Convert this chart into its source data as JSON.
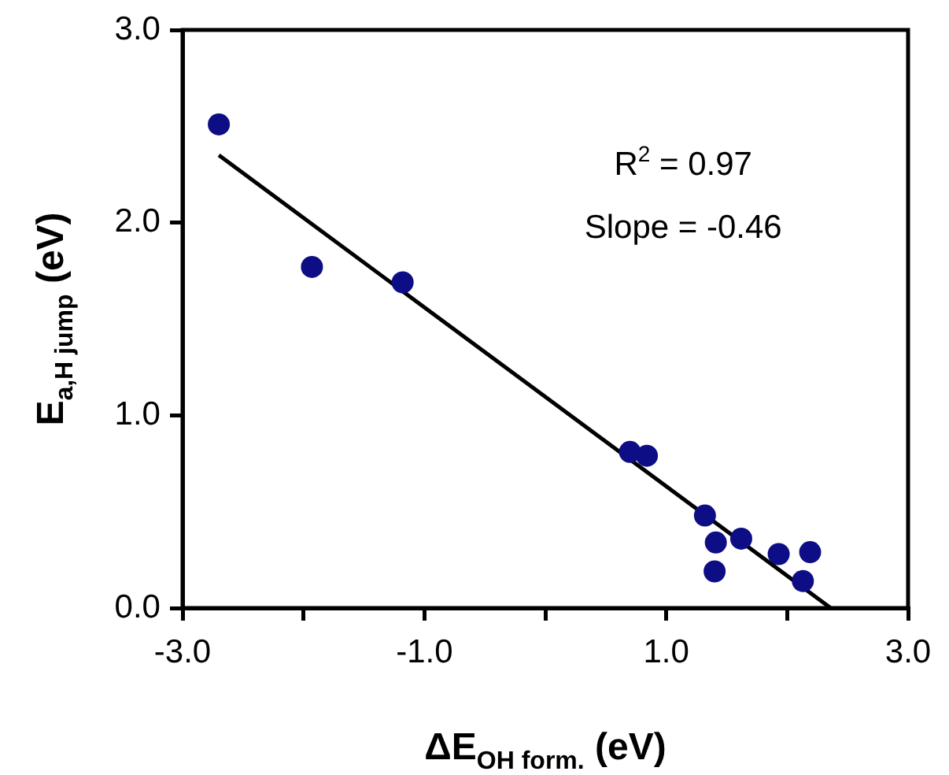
{
  "chart_data": {
    "type": "scatter",
    "xlabel": "ΔE$_{OH form.}$ (eV)",
    "ylabel": "E$_{a,H jump}$ (eV)",
    "xlim": [
      -3,
      3
    ],
    "ylim": [
      0,
      3
    ],
    "xticks": [
      {
        "value": -3,
        "label": "-3.0"
      },
      {
        "value": -2,
        "label": null
      },
      {
        "value": -1,
        "label": "-1.0"
      },
      {
        "value": 0,
        "label": null
      },
      {
        "value": 1,
        "label": "1.0"
      },
      {
        "value": 2,
        "label": null
      },
      {
        "value": 3,
        "label": "3.0"
      }
    ],
    "yticks": [
      {
        "value": 0,
        "label": "0.0"
      },
      {
        "value": 1,
        "label": "1.0"
      },
      {
        "value": 2,
        "label": "2.0"
      },
      {
        "value": 3,
        "label": "3.0"
      }
    ],
    "grid": false,
    "legend": false,
    "marker": "circle",
    "annotations": [
      "R$^{2}$ = 0.97",
      "Slope = -0.46"
    ],
    "series": [
      {
        "color": "#0d0d85",
        "x": [
          -2.7,
          -1.93,
          -1.18,
          0.7,
          0.84,
          1.32,
          1.41,
          1.4,
          1.62,
          1.93,
          2.19,
          2.13
        ],
        "values": [
          2.51,
          1.77,
          1.69,
          0.81,
          0.79,
          0.48,
          0.34,
          0.19,
          0.36,
          0.28,
          0.29,
          0.14
        ]
      },
      {
        "type": "line",
        "color": "#000000",
        "marker": "none",
        "line_style": "solid",
        "x": [
          -2.7,
          2.36
        ],
        "values": [
          2.35,
          0
        ]
      }
    ]
  }
}
